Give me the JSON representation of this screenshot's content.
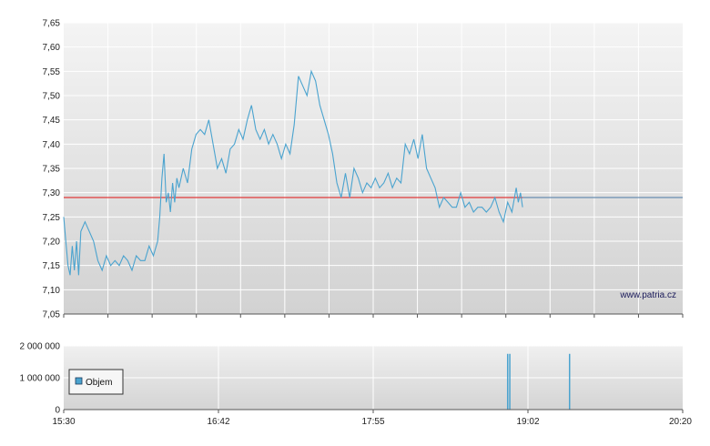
{
  "watermark": "www.patria.cz",
  "legend": {
    "label": "Objem"
  },
  "colors": {
    "price_line": "#4aa3cf",
    "reference_line": "#e03a3a",
    "volume_bar": "#4aa3cf",
    "legend_swatch": "#4aa3cf"
  },
  "chart_data": [
    {
      "type": "line",
      "y_ticks": [
        "7,05",
        "7,10",
        "7,15",
        "7,20",
        "7,25",
        "7,30",
        "7,35",
        "7,40",
        "7,45",
        "7,50",
        "7,55",
        "7,60",
        "7,65"
      ],
      "ylim": [
        7.05,
        7.65
      ],
      "xlim": [
        "15:30",
        "20:20"
      ],
      "grid": true,
      "reference_line": 7.29,
      "series": [
        {
          "x": [
            "15:30",
            "15:31",
            "15:32",
            "15:33",
            "15:34",
            "15:35",
            "15:36",
            "15:37",
            "15:38",
            "15:39",
            "15:40",
            "15:42",
            "15:44",
            "15:46",
            "15:48",
            "15:50",
            "15:52",
            "15:54",
            "15:56",
            "15:58",
            "16:00",
            "16:02",
            "16:04",
            "16:06",
            "16:08",
            "16:10",
            "16:12",
            "16:14",
            "16:15",
            "16:16",
            "16:17",
            "16:18",
            "16:19",
            "16:20",
            "16:21",
            "16:22",
            "16:23",
            "16:24",
            "16:26",
            "16:28",
            "16:30",
            "16:32",
            "16:34",
            "16:36",
            "16:38",
            "16:40",
            "16:42",
            "16:44",
            "16:46",
            "16:48",
            "16:50",
            "16:52",
            "16:54",
            "16:56",
            "16:58",
            "17:00",
            "17:02",
            "17:04",
            "17:06",
            "17:08",
            "17:10",
            "17:12",
            "17:14",
            "17:16",
            "17:18",
            "17:20",
            "17:22",
            "17:24",
            "17:26",
            "17:28",
            "17:30",
            "17:32",
            "17:34",
            "17:36",
            "17:38",
            "17:40",
            "17:42",
            "17:44",
            "17:46",
            "17:48",
            "17:50",
            "17:52",
            "17:54",
            "17:56",
            "17:58",
            "18:00",
            "18:02",
            "18:04",
            "18:06",
            "18:08",
            "18:10",
            "18:12",
            "18:14",
            "18:16",
            "18:18",
            "18:20",
            "18:22",
            "18:24",
            "18:26",
            "18:28",
            "18:30",
            "18:32",
            "18:34",
            "18:36",
            "18:38",
            "18:40",
            "18:42",
            "18:44",
            "18:46",
            "18:48",
            "18:50",
            "18:52",
            "18:54",
            "18:56",
            "18:58",
            "19:00",
            "19:02",
            "19:03",
            "19:04",
            "19:05"
          ],
          "y": [
            7.25,
            7.2,
            7.15,
            7.13,
            7.19,
            7.14,
            7.2,
            7.13,
            7.22,
            7.23,
            7.24,
            7.22,
            7.2,
            7.16,
            7.14,
            7.17,
            7.15,
            7.16,
            7.15,
            7.17,
            7.16,
            7.14,
            7.17,
            7.16,
            7.16,
            7.19,
            7.17,
            7.2,
            7.25,
            7.33,
            7.38,
            7.28,
            7.3,
            7.26,
            7.32,
            7.28,
            7.33,
            7.31,
            7.35,
            7.32,
            7.39,
            7.42,
            7.43,
            7.42,
            7.45,
            7.4,
            7.35,
            7.37,
            7.34,
            7.39,
            7.4,
            7.43,
            7.41,
            7.45,
            7.48,
            7.43,
            7.41,
            7.43,
            7.4,
            7.42,
            7.4,
            7.37,
            7.4,
            7.38,
            7.44,
            7.54,
            7.52,
            7.5,
            7.55,
            7.53,
            7.48,
            7.45,
            7.42,
            7.38,
            7.32,
            7.29,
            7.34,
            7.29,
            7.35,
            7.33,
            7.3,
            7.32,
            7.31,
            7.33,
            7.31,
            7.32,
            7.34,
            7.31,
            7.33,
            7.32,
            7.4,
            7.38,
            7.41,
            7.37,
            7.42,
            7.35,
            7.33,
            7.31,
            7.27,
            7.29,
            7.28,
            7.27,
            7.27,
            7.3,
            7.27,
            7.28,
            7.26,
            7.27,
            7.27,
            7.26,
            7.27,
            7.29,
            7.26,
            7.24,
            7.28,
            7.26,
            7.31,
            7.28,
            7.3,
            7.27
          ]
        }
      ]
    },
    {
      "type": "bar",
      "y_ticks": [
        "0",
        "1 000 000",
        "2 000 000"
      ],
      "ylim": [
        0,
        2000000
      ],
      "x_ticks": [
        "15:30",
        "16:42",
        "17:55",
        "19:02",
        "20:20"
      ],
      "grid": true,
      "legend_position": "left",
      "series": [
        {
          "name": "Objem",
          "x": [
            "18:58",
            "18:59",
            "19:27"
          ],
          "values": [
            1750000,
            1750000,
            1750000
          ]
        }
      ]
    }
  ]
}
